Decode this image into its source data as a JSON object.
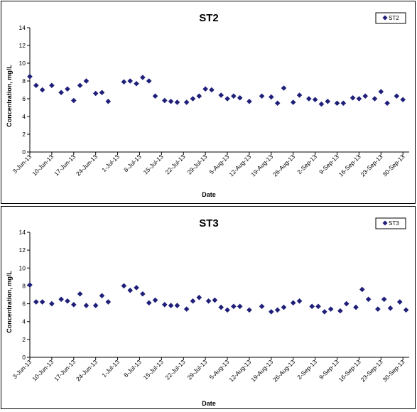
{
  "colors": {
    "marker": "#1F1F7A",
    "axis": "#000000"
  },
  "chart_data": [
    {
      "type": "scatter",
      "title": "ST2",
      "xlabel": "Date",
      "ylabel": "Concentration, mg/L",
      "ylim": [
        0,
        14
      ],
      "yticks": [
        0,
        2,
        4,
        6,
        8,
        10,
        12,
        14
      ],
      "xlim": [
        "2013-06-03",
        "2013-10-02"
      ],
      "xtick_labels": [
        "3-Jun-13",
        "10-Jun-13",
        "17-Jun-13",
        "24-Jun-13",
        "1-Jul-13",
        "8-Jul-13",
        "15-Jul-13",
        "22-Jul-13",
        "29-Jul-13",
        "5-Aug-13",
        "12-Aug-13",
        "19-Aug-13",
        "26-Aug-13",
        "2-Sep-13",
        "9-Sep-13",
        "16-Sep-13",
        "23-Sep-13",
        "30-Sep-13"
      ],
      "xtick_dates": [
        "2013-06-03",
        "2013-06-10",
        "2013-06-17",
        "2013-06-24",
        "2013-07-01",
        "2013-07-08",
        "2013-07-15",
        "2013-07-22",
        "2013-07-29",
        "2013-08-05",
        "2013-08-12",
        "2013-08-19",
        "2013-08-26",
        "2013-09-02",
        "2013-09-09",
        "2013-09-16",
        "2013-09-23",
        "2013-09-30"
      ],
      "legend": "top-right",
      "series": [
        {
          "name": "ST2",
          "x": [
            "2013-06-03",
            "2013-06-05",
            "2013-06-07",
            "2013-06-10",
            "2013-06-13",
            "2013-06-15",
            "2013-06-17",
            "2013-06-19",
            "2013-06-21",
            "2013-06-24",
            "2013-06-26",
            "2013-06-28",
            "2013-07-03",
            "2013-07-05",
            "2013-07-07",
            "2013-07-09",
            "2013-07-11",
            "2013-07-13",
            "2013-07-16",
            "2013-07-18",
            "2013-07-20",
            "2013-07-23",
            "2013-07-25",
            "2013-07-27",
            "2013-07-29",
            "2013-07-31",
            "2013-08-03",
            "2013-08-05",
            "2013-08-07",
            "2013-08-09",
            "2013-08-12",
            "2013-08-16",
            "2013-08-19",
            "2013-08-21",
            "2013-08-23",
            "2013-08-26",
            "2013-08-28",
            "2013-08-31",
            "2013-09-02",
            "2013-09-04",
            "2013-09-06",
            "2013-09-09",
            "2013-09-11",
            "2013-09-14",
            "2013-09-16",
            "2013-09-18",
            "2013-09-21",
            "2013-09-23",
            "2013-09-25",
            "2013-09-28",
            "2013-09-30"
          ],
          "values": [
            8.5,
            7.5,
            7.0,
            7.5,
            6.7,
            7.1,
            5.8,
            7.5,
            8.0,
            6.6,
            6.7,
            5.7,
            7.9,
            8.0,
            7.7,
            8.4,
            8.0,
            6.3,
            5.8,
            5.7,
            5.6,
            5.6,
            6.0,
            6.3,
            7.1,
            7.0,
            6.4,
            6.0,
            6.3,
            6.1,
            5.7,
            6.3,
            6.2,
            5.5,
            7.2,
            5.6,
            6.4,
            6.0,
            5.9,
            5.4,
            5.7,
            5.5,
            5.5,
            6.1,
            6.0,
            6.3,
            6.0,
            6.8,
            5.5,
            6.3,
            5.9
          ]
        }
      ]
    },
    {
      "type": "scatter",
      "title": "ST3",
      "xlabel": "Date",
      "ylabel": "Concentration, mg/L",
      "ylim": [
        0,
        14
      ],
      "yticks": [
        0,
        2,
        4,
        6,
        8,
        10,
        12,
        14
      ],
      "xlim": [
        "2013-06-03",
        "2013-10-02"
      ],
      "xtick_labels": [
        "3-Jun-13",
        "10-Jun-13",
        "17-Jun-13",
        "24-Jun-13",
        "1-Jul-13",
        "8-Jul-13",
        "15-Jul-13",
        "22-Jul-13",
        "29-Jul-13",
        "5-Aug-13",
        "12-Aug-13",
        "19-Aug-13",
        "26-Aug-13",
        "2-Sep-13",
        "9-Sep-13",
        "16-Sep-13",
        "23-Sep-13",
        "30-Sep-13"
      ],
      "xtick_dates": [
        "2013-06-03",
        "2013-06-10",
        "2013-06-17",
        "2013-06-24",
        "2013-07-01",
        "2013-07-08",
        "2013-07-15",
        "2013-07-22",
        "2013-07-29",
        "2013-08-05",
        "2013-08-12",
        "2013-08-19",
        "2013-08-26",
        "2013-09-02",
        "2013-09-09",
        "2013-09-16",
        "2013-09-23",
        "2013-09-30"
      ],
      "legend": "top-right",
      "series": [
        {
          "name": "ST3",
          "x": [
            "2013-06-03",
            "2013-06-05",
            "2013-06-07",
            "2013-06-10",
            "2013-06-13",
            "2013-06-15",
            "2013-06-17",
            "2013-06-19",
            "2013-06-21",
            "2013-06-24",
            "2013-06-26",
            "2013-06-28",
            "2013-07-03",
            "2013-07-05",
            "2013-07-07",
            "2013-07-09",
            "2013-07-11",
            "2013-07-13",
            "2013-07-16",
            "2013-07-18",
            "2013-07-20",
            "2013-07-23",
            "2013-07-25",
            "2013-07-27",
            "2013-07-30",
            "2013-08-01",
            "2013-08-03",
            "2013-08-05",
            "2013-08-07",
            "2013-08-09",
            "2013-08-12",
            "2013-08-16",
            "2013-08-19",
            "2013-08-21",
            "2013-08-23",
            "2013-08-26",
            "2013-08-28",
            "2013-09-01",
            "2013-09-03",
            "2013-09-05",
            "2013-09-07",
            "2013-09-10",
            "2013-09-12",
            "2013-09-15",
            "2013-09-17",
            "2013-09-19",
            "2013-09-22",
            "2013-09-24",
            "2013-09-26",
            "2013-09-29",
            "2013-10-01"
          ],
          "values": [
            8.1,
            6.2,
            6.2,
            6.0,
            6.5,
            6.3,
            5.9,
            7.1,
            5.8,
            5.8,
            6.9,
            6.2,
            8.0,
            7.5,
            7.8,
            7.1,
            6.1,
            6.4,
            5.9,
            5.8,
            5.8,
            5.4,
            6.3,
            6.7,
            6.3,
            6.4,
            5.6,
            5.3,
            5.7,
            5.7,
            5.3,
            5.7,
            5.1,
            5.3,
            5.6,
            6.1,
            6.3,
            5.7,
            5.7,
            5.1,
            5.4,
            5.2,
            6.0,
            5.6,
            7.6,
            6.5,
            5.4,
            6.5,
            5.5,
            6.2,
            5.3
          ]
        }
      ]
    }
  ]
}
